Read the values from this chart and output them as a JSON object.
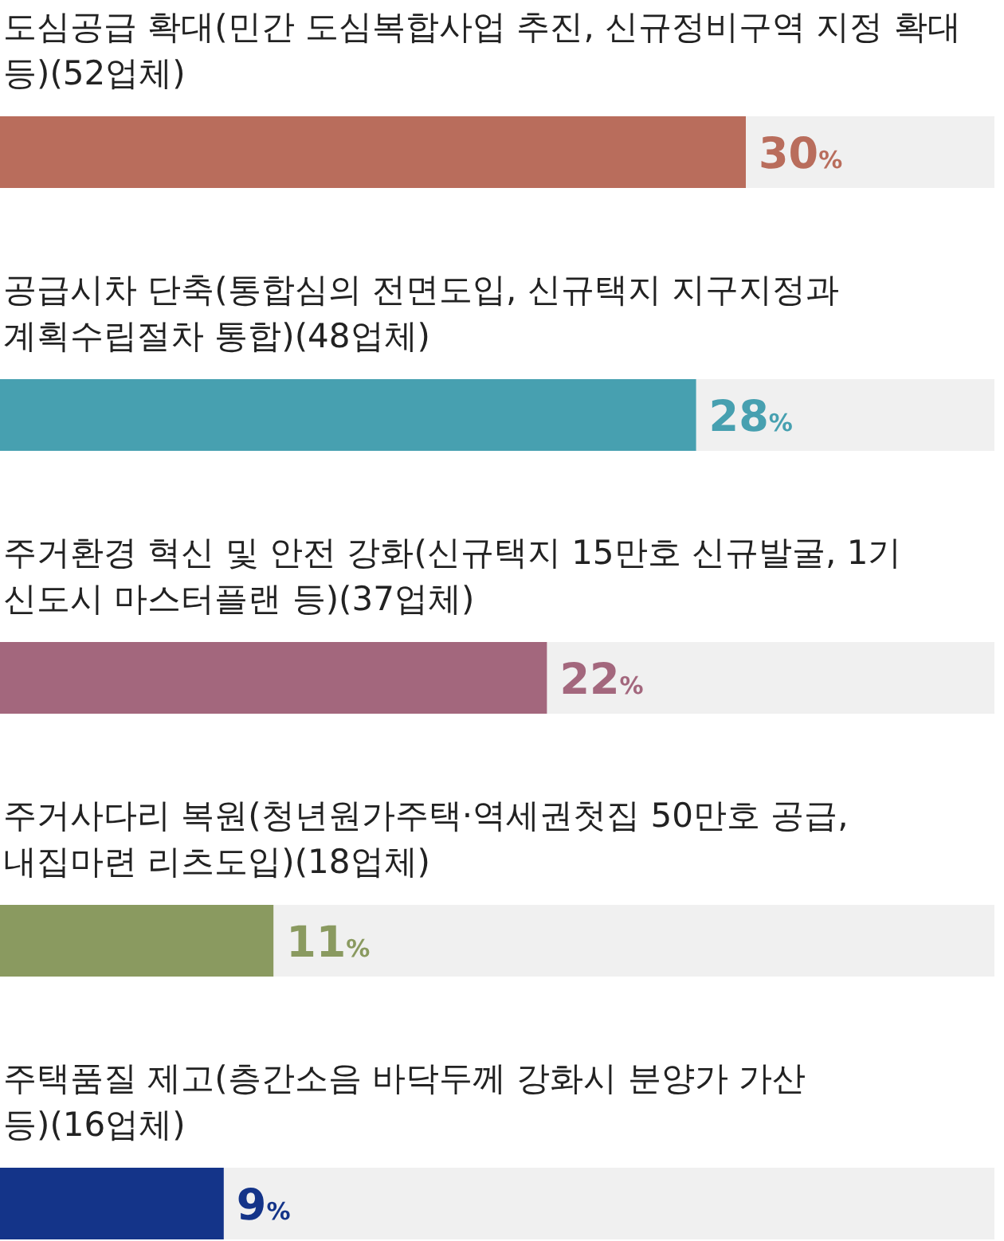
{
  "chart_data": {
    "type": "bar",
    "orientation": "horizontal",
    "categories": [
      "도심공급 확대(민간 도심복합사업 추진, 신규정비구역 지정 확대 등)(52업체)",
      "공급시차 단축(통합심의 전면도입, 신규택지 지구지정과 계획수립절차 통합)(48업체)",
      "주거환경 혁신 및 안전 강화(신규택지 15만호 신규발굴, 1기 신도시 마스터플랜 등)(37업체)",
      "주거사다리 복원(청년원가주택·역세권첫집 50만호 공급, 내집마련 리츠도입)(18업체)",
      "주택품질 제고(층간소음 바닥두께 강화시 분양가 가산 등)(16업체)"
    ],
    "values": [
      30,
      28,
      22,
      11,
      9
    ],
    "colors": [
      "#b96d5c",
      "#47a0b0",
      "#a3677d",
      "#8a9a60",
      "#143489"
    ],
    "value_labels": [
      "30%",
      "28%",
      "22%",
      "11%",
      "9%"
    ],
    "xlim": [
      0,
      40
    ]
  }
}
